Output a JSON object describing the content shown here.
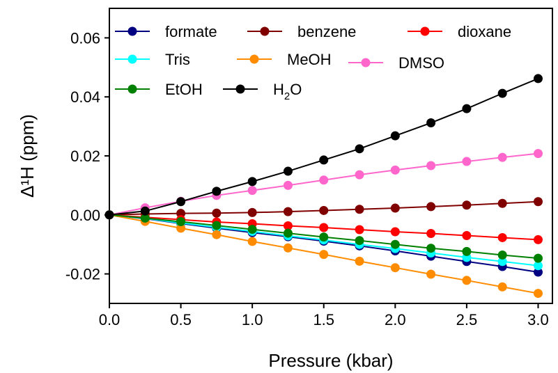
{
  "chart_data": {
    "type": "line",
    "xlabel": "Pressure (kbar)",
    "ylabel": "Δ¹H (ppm)",
    "xlim": [
      0,
      3.1
    ],
    "ylim": [
      -0.03,
      0.07
    ],
    "xticks": [
      0.0,
      0.5,
      1.0,
      1.5,
      2.0,
      2.5,
      3.0
    ],
    "xtick_labels": [
      "0.0",
      "0.5",
      "1.0",
      "1.5",
      "2.0",
      "2.5",
      "3.0"
    ],
    "yticks": [
      -0.02,
      0.0,
      0.02,
      0.04,
      0.06
    ],
    "ytick_labels": [
      "-0.02",
      "0.00",
      "0.02",
      "0.04",
      "0.06"
    ],
    "grid": false,
    "legend_position": "top-left",
    "x": [
      0,
      0.25,
      0.5,
      0.75,
      1.0,
      1.25,
      1.5,
      1.75,
      2.0,
      2.25,
      2.5,
      2.75,
      3.0
    ],
    "series": [
      {
        "name": "formate",
        "color": "#000080",
        "values": [
          0,
          -0.0013,
          -0.0029,
          -0.0045,
          -0.006,
          -0.0074,
          -0.0089,
          -0.0105,
          -0.0122,
          -0.014,
          -0.0158,
          -0.0175,
          -0.0194
        ]
      },
      {
        "name": "benzene",
        "color": "#800000",
        "values": [
          0,
          0.0003,
          0.0005,
          0.0006,
          0.0008,
          0.0011,
          0.0015,
          0.0019,
          0.0023,
          0.0028,
          0.0033,
          0.0039,
          0.0045
        ]
      },
      {
        "name": "dioxane",
        "color": "#ff0000",
        "values": [
          0,
          -0.0008,
          -0.0016,
          -0.0024,
          -0.003,
          -0.0037,
          -0.0043,
          -0.005,
          -0.0057,
          -0.0063,
          -0.007,
          -0.0077,
          -0.0084
        ]
      },
      {
        "name": "Tris",
        "color": "#00ffff",
        "values": [
          0,
          -0.0012,
          -0.0027,
          -0.0042,
          -0.0056,
          -0.0071,
          -0.0085,
          -0.01,
          -0.0114,
          -0.0129,
          -0.0144,
          -0.0158,
          -0.0172
        ]
      },
      {
        "name": "MeOH",
        "color": "#ff8c00",
        "values": [
          0,
          -0.0022,
          -0.0045,
          -0.0067,
          -0.009,
          -0.0112,
          -0.0134,
          -0.0157,
          -0.0179,
          -0.0201,
          -0.0222,
          -0.0244,
          -0.0266
        ]
      },
      {
        "name": "DMSO",
        "color": "#ff66cc",
        "values": [
          0,
          0.0024,
          0.0046,
          0.0066,
          0.0083,
          0.01,
          0.0118,
          0.0136,
          0.0152,
          0.0167,
          0.0181,
          0.0195,
          0.0208
        ]
      },
      {
        "name": "EtOH",
        "color": "#008000",
        "values": [
          0,
          -0.0011,
          -0.0023,
          -0.0036,
          -0.0049,
          -0.0062,
          -0.0075,
          -0.0087,
          -0.01,
          -0.0113,
          -0.0124,
          -0.0136,
          -0.0147
        ]
      },
      {
        "name": "H2O",
        "color": "#000000",
        "values": [
          0,
          0.0013,
          0.0045,
          0.008,
          0.0113,
          0.0148,
          0.0186,
          0.0224,
          0.0268,
          0.0312,
          0.036,
          0.0412,
          0.0462
        ]
      }
    ]
  }
}
